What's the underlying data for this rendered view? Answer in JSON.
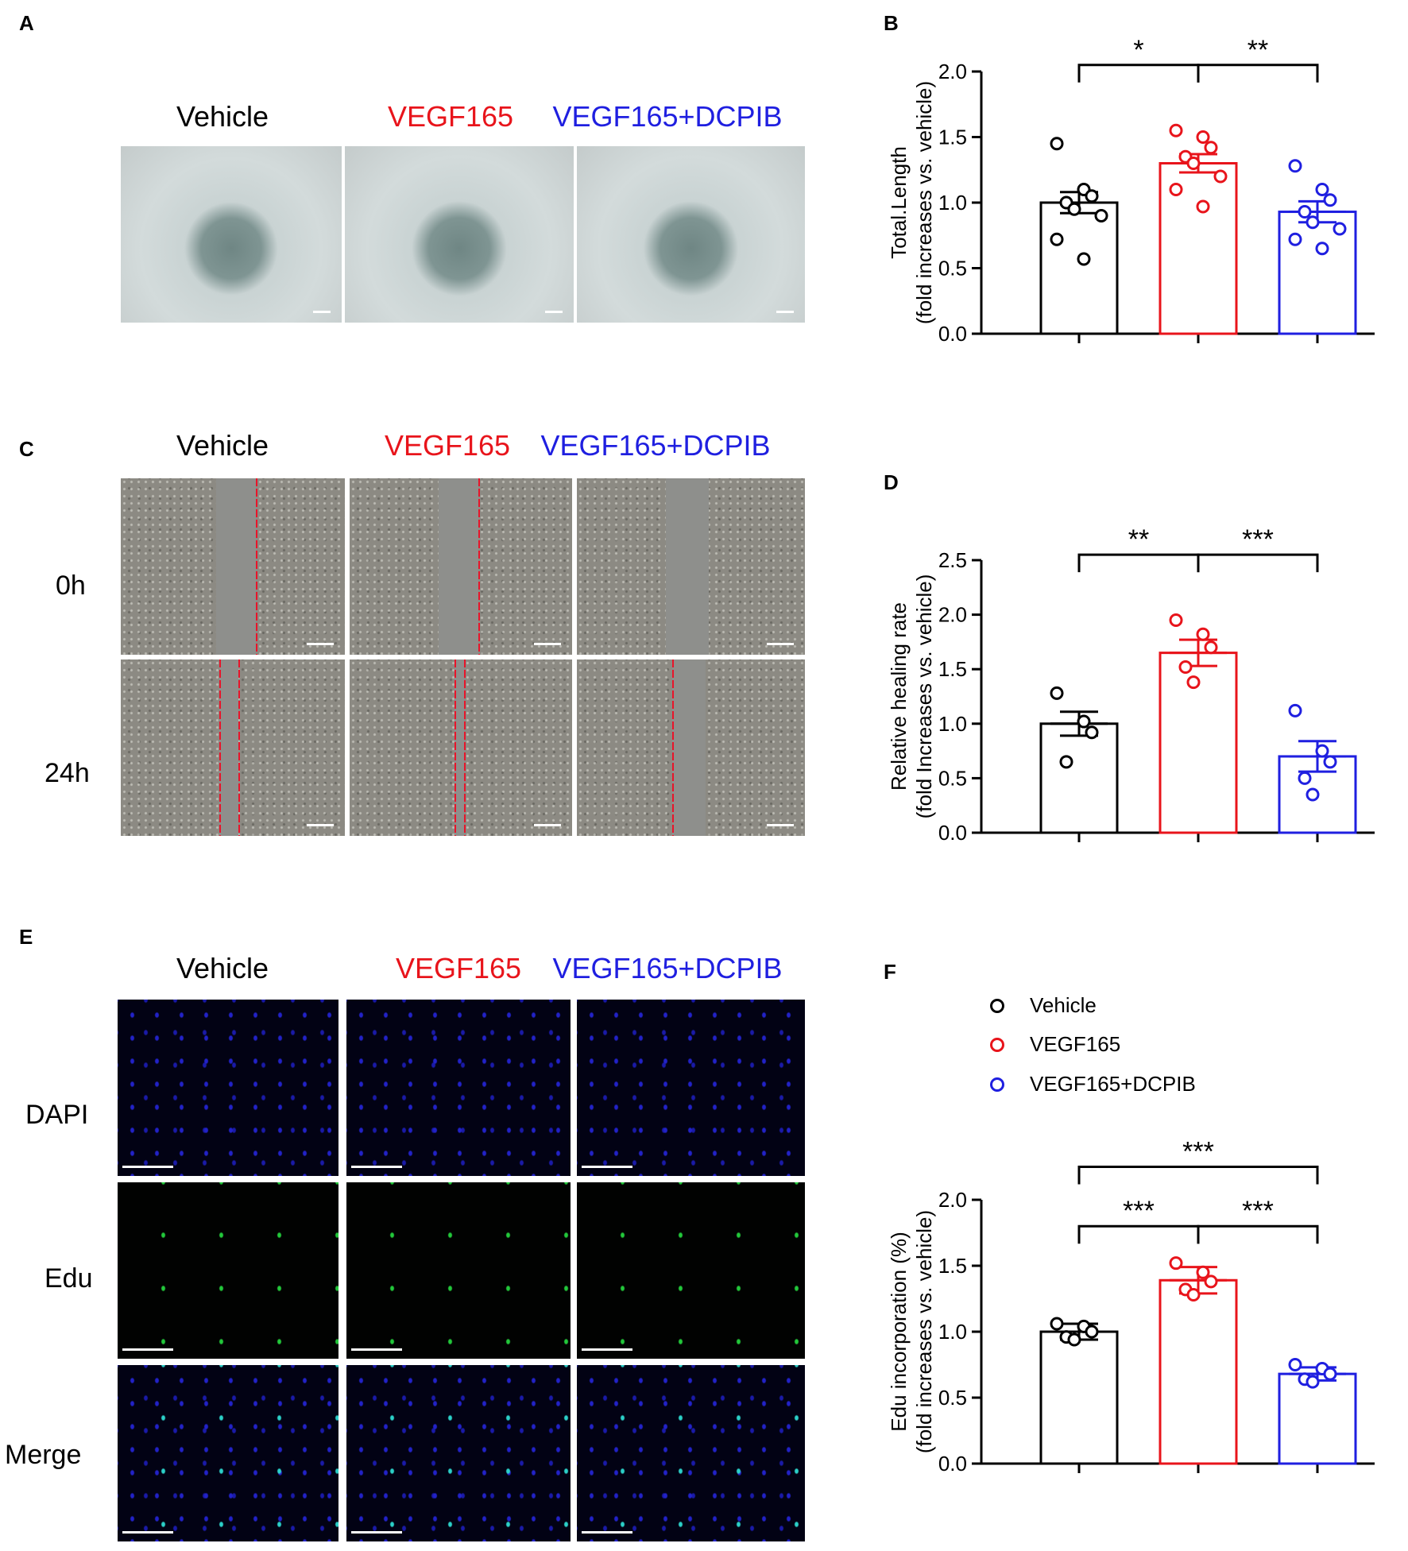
{
  "panels": {
    "A": {
      "letter": "A",
      "columns": [
        "Vehicle",
        "VEGF165",
        "VEGF165+DCPIB"
      ]
    },
    "C": {
      "letter": "C",
      "columns": [
        "Vehicle",
        "VEGF165",
        "VEGF165+DCPIB"
      ],
      "rows": [
        "0h",
        "24h"
      ]
    },
    "E": {
      "letter": "E",
      "columns": [
        "Vehicle",
        "VEGF165",
        "VEGF165+DCPIB"
      ],
      "rows": [
        "DAPI",
        "Edu",
        "Merge"
      ]
    },
    "B": {
      "letter": "B"
    },
    "D": {
      "letter": "D"
    },
    "F": {
      "letter": "F"
    }
  },
  "colors": {
    "vehicle": "#000000",
    "vegf": "#e8141b",
    "dcpib": "#1f1fe0"
  },
  "legend_F": [
    "Vehicle",
    "VEGF165",
    "VEGF165+DCPIB"
  ],
  "chart_data": [
    {
      "panel": "B",
      "type": "bar",
      "categories": [
        "Vehicle",
        "VEGF165",
        "VEGF165+DCPIB"
      ],
      "values": [
        1.0,
        1.3,
        0.93
      ],
      "sem": [
        0.08,
        0.07,
        0.08
      ],
      "points": [
        [
          1.45,
          1.1,
          1.05,
          1.0,
          0.95,
          0.9,
          0.72,
          0.57
        ],
        [
          1.55,
          1.5,
          1.42,
          1.35,
          1.3,
          1.2,
          1.1,
          0.97
        ],
        [
          1.28,
          1.1,
          1.02,
          0.93,
          0.85,
          0.8,
          0.72,
          0.65
        ]
      ],
      "ylabel": "Total.Length",
      "ylabel2": "(fold increases vs. vehicle)",
      "ylim": [
        0,
        2.0
      ],
      "yticks": [
        "0.0",
        "0.5",
        "1.0",
        "1.5",
        "2.0"
      ],
      "significance": [
        {
          "from": 0,
          "to": 1,
          "label": "*",
          "level": 2.05
        },
        {
          "from": 1,
          "to": 2,
          "label": "**",
          "level": 2.05
        }
      ]
    },
    {
      "panel": "D",
      "type": "bar",
      "categories": [
        "Vehicle",
        "VEGF165",
        "VEGF165+DCPIB"
      ],
      "values": [
        1.0,
        1.65,
        0.7
      ],
      "sem": [
        0.11,
        0.12,
        0.14
      ],
      "points": [
        [
          1.28,
          1.02,
          0.92,
          0.65
        ],
        [
          1.95,
          1.82,
          1.7,
          1.52,
          1.38
        ],
        [
          1.12,
          0.75,
          0.65,
          0.5,
          0.35
        ]
      ],
      "ylabel": "Relative healing rate",
      "ylabel2": "(fold Increases vs. vehicle)",
      "ylim": [
        0,
        2.5
      ],
      "yticks": [
        "0.0",
        "0.5",
        "1.0",
        "1.5",
        "2.0",
        "2.5"
      ],
      "significance": [
        {
          "from": 0,
          "to": 1,
          "label": "**",
          "level": 2.55
        },
        {
          "from": 1,
          "to": 2,
          "label": "***",
          "level": 2.55
        }
      ]
    },
    {
      "panel": "F",
      "type": "bar",
      "categories": [
        "Vehicle",
        "VEGF165",
        "VEGF165+DCPIB"
      ],
      "values": [
        1.0,
        1.39,
        0.68
      ],
      "sem": [
        0.06,
        0.1,
        0.05
      ],
      "points": [
        [
          1.06,
          1.04,
          1.0,
          0.96,
          0.94
        ],
        [
          1.52,
          1.45,
          1.38,
          1.32,
          1.28
        ],
        [
          0.75,
          0.72,
          0.68,
          0.64,
          0.62
        ]
      ],
      "ylabel": "Edu incorporation (%)",
      "ylabel2": "(fold increases vs. vehicle)",
      "ylim": [
        0,
        2.0
      ],
      "yticks": [
        "0.0",
        "0.5",
        "1.0",
        "1.5",
        "2.0"
      ],
      "significance": [
        {
          "from": 0,
          "to": 2,
          "label": "***",
          "level": 2.25
        },
        {
          "from": 0,
          "to": 1,
          "label": "***",
          "level": 1.8
        },
        {
          "from": 1,
          "to": 2,
          "label": "***",
          "level": 1.8
        }
      ]
    }
  ]
}
